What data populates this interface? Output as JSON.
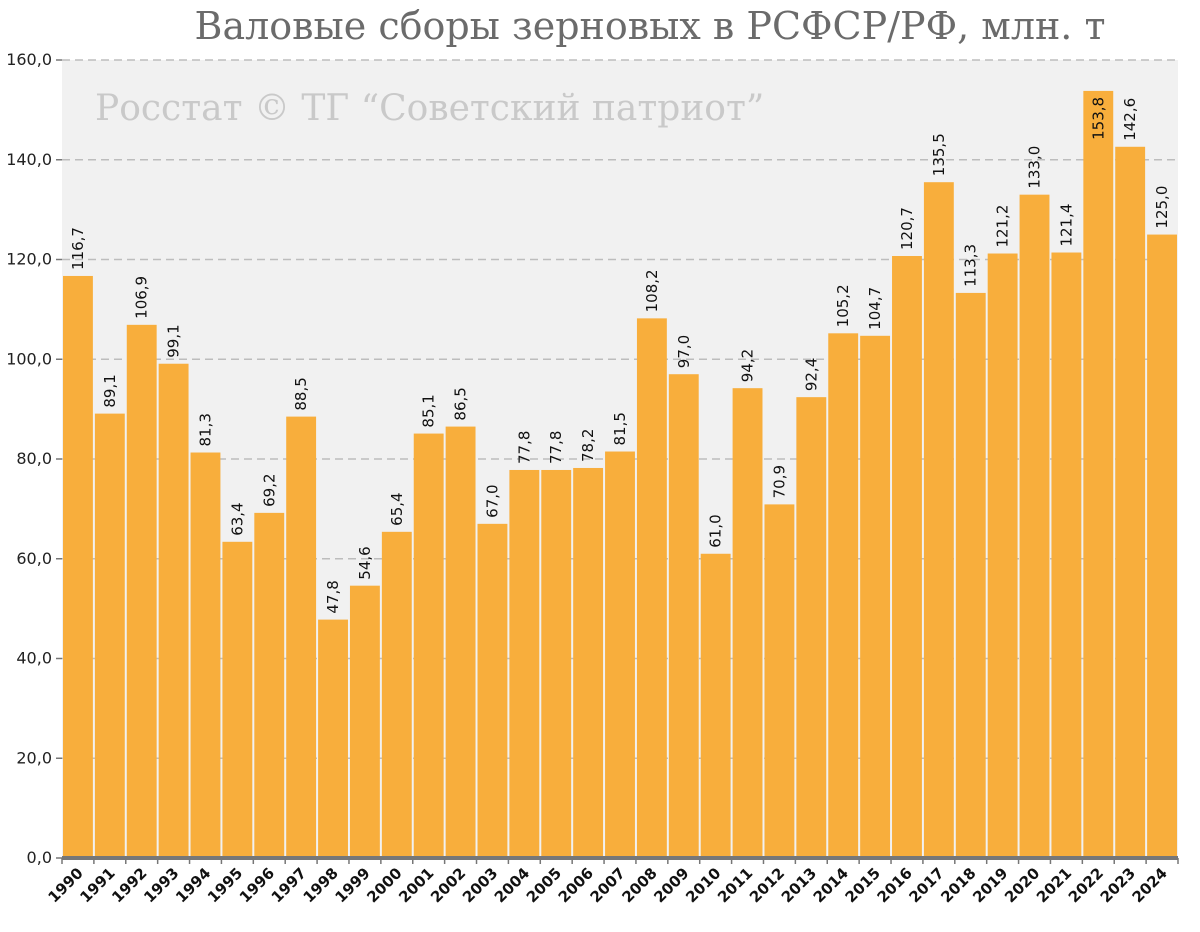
{
  "chart_data": {
    "type": "bar",
    "title": "Валовые сборы зерновых в РСФСР/РФ, млн. т",
    "watermark": "Росстат © ТГ “Советский патриот”",
    "categories": [
      "1990",
      "1991",
      "1992",
      "1993",
      "1994",
      "1995",
      "1996",
      "1997",
      "1998",
      "1999",
      "2000",
      "2001",
      "2002",
      "2003",
      "2004",
      "2005",
      "2006",
      "2007",
      "2008",
      "2009",
      "2010",
      "2011",
      "2012",
      "2013",
      "2014",
      "2015",
      "2016",
      "2017",
      "2018",
      "2019",
      "2020",
      "2021",
      "2022",
      "2023",
      "2024"
    ],
    "values": [
      116.7,
      89.1,
      106.9,
      99.1,
      81.3,
      63.4,
      69.2,
      88.5,
      47.8,
      54.6,
      65.4,
      85.1,
      86.5,
      67.0,
      77.8,
      77.8,
      78.2,
      81.5,
      108.2,
      97.0,
      61.0,
      94.2,
      70.9,
      92.4,
      105.2,
      104.7,
      120.7,
      135.5,
      113.3,
      121.2,
      133.0,
      121.4,
      153.8,
      142.6,
      125.0
    ],
    "labels": [
      "116,7",
      "89,1",
      "106,9",
      "99,1",
      "81,3",
      "63,4",
      "69,2",
      "88,5",
      "47,8",
      "54,6",
      "65,4",
      "85,1",
      "86,5",
      "67,0",
      "77,8",
      "77,8",
      "78,2",
      "81,5",
      "108,2",
      "97,0",
      "61,0",
      "94,2",
      "70,9",
      "92,4",
      "105,2",
      "104,7",
      "120,7",
      "135,5",
      "113,3",
      "121,2",
      "133,0",
      "121,4",
      "153,8",
      "142,6",
      "125,0"
    ],
    "yticks": [
      "0,0",
      "20,0",
      "40,0",
      "60,0",
      "80,0",
      "100,0",
      "120,0",
      "140,0",
      "160,0"
    ],
    "ylim": [
      0,
      160
    ],
    "grid": true,
    "bar_color": "#f8ae3c",
    "plot_background": "#f1f1f1",
    "grid_color": "#bdbdbd",
    "axis_color": "#777777"
  }
}
